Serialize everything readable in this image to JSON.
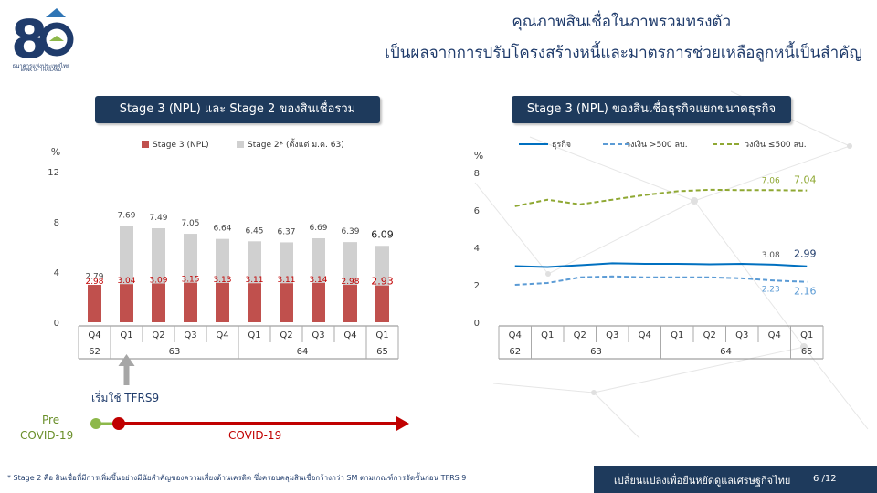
{
  "header": {
    "title_line1": "คุณภาพสินเชื่อในภาพรวมทรงตัว",
    "title_line2": "เป็นผลจากการปรับโครงสร้างหนี้และมาตรการช่วยเหลือลูกหนี้เป็นสำคัญ",
    "logo_text": "ธนาคารแห่งประเทศไทย",
    "logo_subtext": "BANK OF THAILAND"
  },
  "colors": {
    "navy": "#1e3a5c",
    "stage3": "#c0504d",
    "stage2": "#d0d0d0",
    "sme": "#0070c0",
    "sme_small": "#5b9bd5",
    "sme_large": "#8fa833",
    "covid": "#c00000",
    "pre": "#8db84a"
  },
  "annotations": {
    "tfrs9": "เริ่มใช้ TFRS9",
    "pre_covid_1": "Pre",
    "pre_covid_2": "COVID-19",
    "covid": "COVID-19"
  },
  "footer": {
    "note": "* Stage 2 คือ สินเชื่อที่มีการเพิ่มขึ้นอย่างมีนัยสำคัญของความเสี่ยงด้านเครดิต ซึ่งครอบคลุมสินเชื่อกว้างกว่า SM ตามเกณฑ์การจัดชั้นก่อน TFRS 9",
    "slogan": "เปลี่ยนแปลงเพื่อยืนหยัดดูแลเศรษฐกิจไทย",
    "page": "6 /12"
  },
  "chart_data": [
    {
      "type": "bar",
      "title": "Stage 3 (NPL) และ Stage 2 ของสินเชื่อรวม",
      "ylabel": "%",
      "ylim": [
        0,
        12
      ],
      "yticks": [
        "0",
        "4",
        "8",
        "12"
      ],
      "categories": [
        "Q4",
        "Q1",
        "Q2",
        "Q3",
        "Q4",
        "Q1",
        "Q2",
        "Q3",
        "Q4",
        "Q1"
      ],
      "year_groups": [
        {
          "label": "62",
          "count": 1
        },
        {
          "label": "63",
          "count": 4
        },
        {
          "label": "64",
          "count": 4
        },
        {
          "label": "65",
          "count": 1
        }
      ],
      "stacked": true,
      "legend_position": "top",
      "series": [
        {
          "name": "Stage 3 (NPL)",
          "values": [
            2.98,
            3.04,
            3.09,
            3.15,
            3.13,
            3.11,
            3.11,
            3.14,
            2.98,
            2.93
          ],
          "labels": [
            "2.98",
            "3.04",
            "3.09",
            "3.15",
            "3.13",
            "3.11",
            "3.11",
            "3.14",
            "2.98",
            "2.93"
          ]
        },
        {
          "name": "Stage 2* (ตั้งแต่ ม.ค. 63)",
          "totals": [
            2.79,
            7.69,
            7.49,
            7.05,
            6.64,
            6.45,
            6.37,
            6.69,
            6.39,
            6.09
          ],
          "labels": [
            "2.79",
            "7.69",
            "7.49",
            "7.05",
            "6.64",
            "6.45",
            "6.37",
            "6.69",
            "6.39",
            "6.09"
          ]
        }
      ]
    },
    {
      "type": "line",
      "title": "Stage 3 (NPL) ของสินเชื่อธุรกิจแยกขนาดธุรกิจ",
      "ylabel": "%",
      "ylim": [
        0,
        8
      ],
      "yticks": [
        "0",
        "2",
        "4",
        "6",
        "8"
      ],
      "categories": [
        "Q4",
        "Q1",
        "Q2",
        "Q3",
        "Q4",
        "Q1",
        "Q2",
        "Q3",
        "Q4",
        "Q1"
      ],
      "year_groups": [
        {
          "label": "62",
          "count": 1
        },
        {
          "label": "63",
          "count": 4
        },
        {
          "label": "64",
          "count": 4
        },
        {
          "label": "65",
          "count": 1
        }
      ],
      "legend_position": "top",
      "series": [
        {
          "name": "ธุรกิจ",
          "values": [
            3.0,
            2.95,
            3.05,
            3.15,
            3.12,
            3.12,
            3.1,
            3.12,
            3.08,
            2.99
          ],
          "end_labels": [
            "3.08",
            "2.99"
          ]
        },
        {
          "name": "วงเงิน >500 ลบ.",
          "values": [
            2.0,
            2.1,
            2.4,
            2.45,
            2.4,
            2.4,
            2.4,
            2.35,
            2.23,
            2.16
          ],
          "end_labels": [
            "2.23",
            "2.16"
          ]
        },
        {
          "name": "วงเงิน ≤500 ลบ.",
          "values": [
            6.2,
            6.55,
            6.3,
            6.55,
            6.8,
            7.0,
            7.08,
            7.06,
            7.06,
            7.04
          ],
          "end_labels": [
            "7.06",
            "7.04"
          ]
        }
      ]
    }
  ]
}
